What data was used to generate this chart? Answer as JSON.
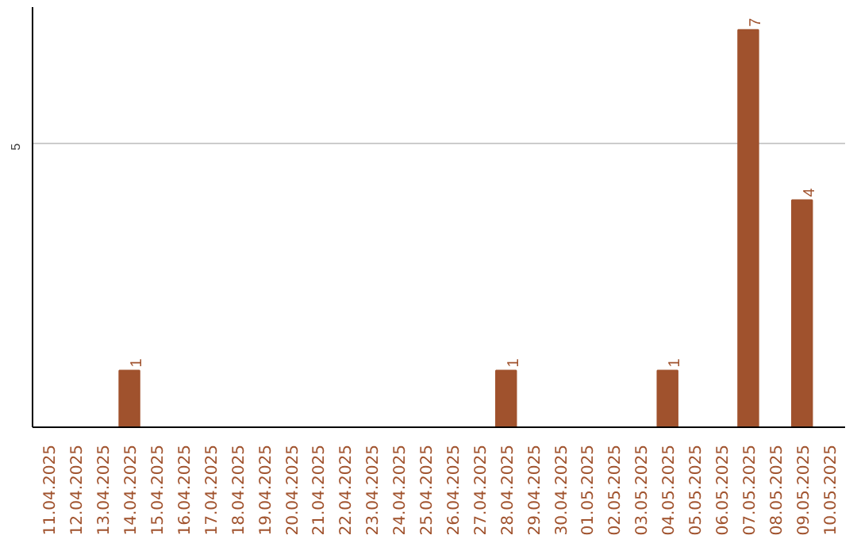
{
  "chart_data": {
    "type": "bar",
    "categories": [
      "11.04.2025",
      "12.04.2025",
      "13.04.2025",
      "14.04.2025",
      "15.04.2025",
      "16.04.2025",
      "17.04.2025",
      "18.04.2025",
      "19.04.2025",
      "20.04.2025",
      "21.04.2025",
      "22.04.2025",
      "23.04.2025",
      "24.04.2025",
      "25.04.2025",
      "26.04.2025",
      "27.04.2025",
      "28.04.2025",
      "29.04.2025",
      "30.04.2025",
      "01.05.2025",
      "02.05.2025",
      "03.05.2025",
      "04.05.2025",
      "05.05.2025",
      "06.05.2025",
      "07.05.2025",
      "08.05.2025",
      "09.05.2025",
      "10.05.2025"
    ],
    "values": [
      0,
      0,
      0,
      1,
      0,
      0,
      0,
      0,
      0,
      0,
      0,
      0,
      0,
      0,
      0,
      0,
      0,
      1,
      0,
      0,
      0,
      0,
      0,
      1,
      0,
      0,
      7,
      0,
      4,
      0
    ],
    "value_labels": [
      null,
      null,
      null,
      "1",
      null,
      null,
      null,
      null,
      null,
      null,
      null,
      null,
      null,
      null,
      null,
      null,
      null,
      "1",
      null,
      null,
      null,
      null,
      null,
      "1",
      null,
      null,
      "7",
      null,
      "4",
      null
    ],
    "color": "#a0522d",
    "ylim": [
      0,
      7.4
    ],
    "yticks": [
      5
    ],
    "grid": "y"
  }
}
